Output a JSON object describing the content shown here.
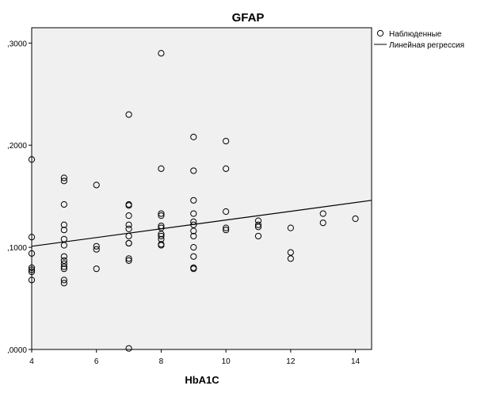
{
  "chart_data": {
    "type": "scatter",
    "title": "GFAP",
    "xlabel": "HbA1C",
    "ylabel": "",
    "xlim": [
      4,
      14.5
    ],
    "ylim": [
      0,
      0.315
    ],
    "x_ticks": [
      4,
      6,
      8,
      10,
      12,
      14
    ],
    "x_tick_labels": [
      "4",
      "6",
      "8",
      "10",
      "12",
      "14"
    ],
    "y_ticks": [
      0,
      0.1,
      0.2,
      0.3
    ],
    "y_tick_labels": [
      ",0000",
      ",1000",
      ",2000",
      ",3000"
    ],
    "grid": false,
    "plot_background": "#f0f0f0",
    "legend": {
      "placement": "right-top",
      "entries": [
        {
          "label": "Наблюденные",
          "marker": "circle"
        },
        {
          "label": "Линейная регрессия",
          "marker": "line"
        }
      ]
    },
    "series": [
      {
        "name": "Наблюденные",
        "type": "scatter",
        "points": [
          [
            4,
            0.186
          ],
          [
            4,
            0.11
          ],
          [
            4,
            0.094
          ],
          [
            4,
            0.08
          ],
          [
            4,
            0.078
          ],
          [
            4,
            0.076
          ],
          [
            4,
            0.068
          ],
          [
            5,
            0.168
          ],
          [
            5,
            0.165
          ],
          [
            5,
            0.142
          ],
          [
            5,
            0.122
          ],
          [
            5,
            0.117
          ],
          [
            5,
            0.108
          ],
          [
            5,
            0.102
          ],
          [
            5,
            0.091
          ],
          [
            5,
            0.087
          ],
          [
            5,
            0.084
          ],
          [
            5,
            0.081
          ],
          [
            5,
            0.079
          ],
          [
            5,
            0.068
          ],
          [
            5,
            0.065
          ],
          [
            6,
            0.161
          ],
          [
            6,
            0.101
          ],
          [
            6,
            0.098
          ],
          [
            6,
            0.079
          ],
          [
            7,
            0.23
          ],
          [
            7,
            0.142
          ],
          [
            7,
            0.141
          ],
          [
            7,
            0.131
          ],
          [
            7,
            0.122
          ],
          [
            7,
            0.118
          ],
          [
            7,
            0.111
          ],
          [
            7,
            0.104
          ],
          [
            7,
            0.104
          ],
          [
            7,
            0.089
          ],
          [
            7,
            0.087
          ],
          [
            7,
            0.001
          ],
          [
            8,
            0.29
          ],
          [
            8,
            0.177
          ],
          [
            8,
            0.133
          ],
          [
            8,
            0.131
          ],
          [
            8,
            0.121
          ],
          [
            8,
            0.119
          ],
          [
            8,
            0.113
          ],
          [
            8,
            0.111
          ],
          [
            8,
            0.108
          ],
          [
            8,
            0.103
          ],
          [
            8,
            0.102
          ],
          [
            9,
            0.208
          ],
          [
            9,
            0.175
          ],
          [
            9,
            0.146
          ],
          [
            9,
            0.133
          ],
          [
            9,
            0.125
          ],
          [
            9,
            0.122
          ],
          [
            9,
            0.116
          ],
          [
            9,
            0.111
          ],
          [
            9,
            0.1
          ],
          [
            9,
            0.091
          ],
          [
            9,
            0.08
          ],
          [
            9,
            0.079
          ],
          [
            10,
            0.204
          ],
          [
            10,
            0.177
          ],
          [
            10,
            0.135
          ],
          [
            10,
            0.119
          ],
          [
            10,
            0.117
          ],
          [
            11,
            0.126
          ],
          [
            11,
            0.122
          ],
          [
            11,
            0.12
          ],
          [
            11,
            0.111
          ],
          [
            12,
            0.119
          ],
          [
            12,
            0.095
          ],
          [
            12,
            0.089
          ],
          [
            13,
            0.133
          ],
          [
            13,
            0.124
          ],
          [
            14,
            0.128
          ]
        ]
      },
      {
        "name": "Линейная регрессия",
        "type": "line",
        "x": [
          4,
          14.5
        ],
        "y": [
          0.101,
          0.146
        ]
      }
    ]
  },
  "colors": {
    "plot_background": "#f0f0f0",
    "marker_stroke": "#000000",
    "line": "#000000"
  }
}
